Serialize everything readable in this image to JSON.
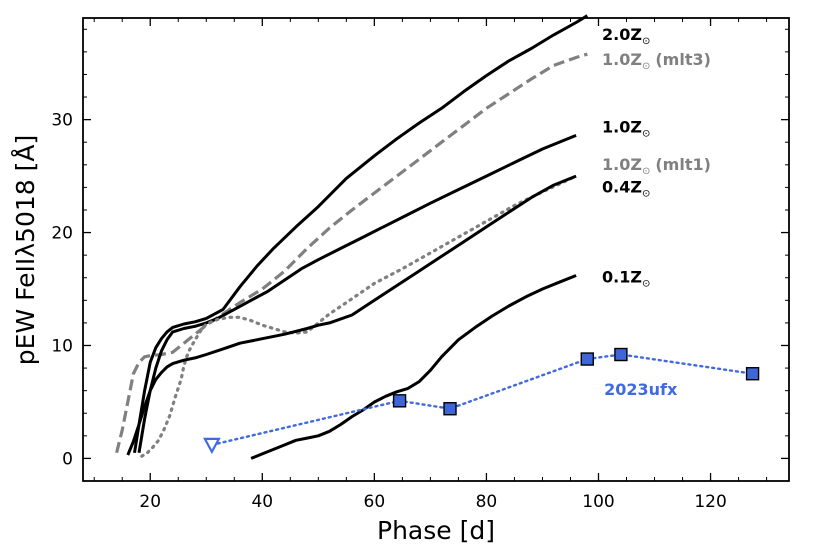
{
  "chart_data": {
    "type": "line",
    "title": "",
    "xlabel": "Phase [d]",
    "ylabel": "pEW FeIIλ5018 [Å]",
    "xlim": [
      8,
      134
    ],
    "ylim": [
      -2,
      39
    ],
    "xticks": [
      20,
      40,
      60,
      80,
      100,
      120
    ],
    "yticks": [
      0,
      10,
      20,
      30
    ],
    "xtick_labels": [
      "20",
      "40",
      "60",
      "80",
      "100",
      "120"
    ],
    "ytick_labels": [
      "0",
      "10",
      "20",
      "30"
    ],
    "grid": false,
    "series": [
      {
        "id": "z20",
        "name": "2.0Z",
        "suffix": "",
        "color": "#000000",
        "dash": "solid",
        "label_y": 37.5,
        "x": [
          17.2,
          18.0,
          19.0,
          20.0,
          21.0,
          22.0,
          23.0,
          24.0,
          26.0,
          28.0,
          30.0,
          33.0,
          36.0,
          39.0,
          42.0,
          46.0,
          50.0,
          55.0,
          60.0,
          64.0,
          68.0,
          72.0,
          76.0,
          80.0,
          84.0,
          88.0,
          92.0,
          96.0,
          98.0
        ],
        "y": [
          0.5,
          3.0,
          6.0,
          8.5,
          9.8,
          10.6,
          11.2,
          11.6,
          11.9,
          12.1,
          12.4,
          13.2,
          15.2,
          17.0,
          18.6,
          20.5,
          22.3,
          24.8,
          26.8,
          28.3,
          29.7,
          31.0,
          32.5,
          33.9,
          35.2,
          36.3,
          37.5,
          38.6,
          39.2
        ]
      },
      {
        "id": "z10mlt3",
        "name": "1.0Z",
        "suffix": "(mlt3)",
        "color": "#808080",
        "dash": "dashed",
        "label_y": 35.3,
        "x": [
          14.0,
          15.0,
          16.0,
          17.0,
          18.0,
          19.0,
          20.0,
          22.0,
          24.0,
          26.0,
          28.0,
          30.0,
          33.0,
          36.0,
          40.0,
          44.0,
          48.0,
          52.0,
          56.0,
          60.0,
          64.0,
          68.0,
          72.0,
          76.0,
          80.0,
          84.0,
          88.0,
          92.0,
          96.0,
          98.0
        ],
        "y": [
          0.5,
          2.5,
          5.0,
          7.5,
          8.5,
          9.0,
          9.1,
          9.2,
          9.4,
          10.2,
          11.0,
          11.8,
          12.8,
          13.8,
          15.0,
          16.6,
          18.6,
          20.4,
          22.0,
          23.5,
          25.0,
          26.5,
          28.0,
          29.5,
          31.0,
          32.3,
          33.6,
          34.8,
          35.5,
          35.8
        ]
      },
      {
        "id": "z10",
        "name": "1.0Z",
        "suffix": "",
        "color": "#000000",
        "dash": "solid",
        "label_y": 29.3,
        "x": [
          18.0,
          19.0,
          20.0,
          21.0,
          22.0,
          23.0,
          24.0,
          26.0,
          28.0,
          30.0,
          32.0,
          35.0,
          38.0,
          41.0,
          44.0,
          47.0,
          50.0,
          54.0,
          58.0,
          62.0,
          66.0,
          70.0,
          75.0,
          80.0,
          85.0,
          90.0,
          96.0
        ],
        "y": [
          0.5,
          3.5,
          6.0,
          8.0,
          9.5,
          10.5,
          11.2,
          11.5,
          11.7,
          12.0,
          12.4,
          13.2,
          14.0,
          14.8,
          15.8,
          16.8,
          17.6,
          18.6,
          19.6,
          20.6,
          21.6,
          22.6,
          23.8,
          25.0,
          26.2,
          27.4,
          28.6
        ]
      },
      {
        "id": "z10mlt1",
        "name": "1.0Z",
        "suffix": "(mlt1)",
        "color": "#808080",
        "dash": "dotted",
        "label_y": 26.0,
        "x": [
          18.5,
          19.5,
          20.5,
          21.5,
          22.5,
          23.5,
          24.5,
          25.5,
          26.0,
          26.5,
          27.0,
          28.0,
          29.0,
          30.0,
          32.0,
          34.0,
          36.0,
          38.0,
          40.0,
          42.0,
          44.0,
          46.0,
          48.0,
          50.0,
          52.0,
          55.0,
          60.0,
          65.0,
          70.0,
          75.0,
          80.0,
          85.0,
          90.0,
          96.0
        ],
        "y": [
          0.2,
          0.5,
          1.0,
          1.6,
          2.6,
          3.8,
          5.5,
          7.0,
          8.2,
          9.0,
          9.6,
          10.5,
          11.3,
          11.9,
          12.3,
          12.5,
          12.5,
          12.2,
          11.8,
          11.5,
          11.2,
          11.1,
          11.2,
          12.0,
          12.8,
          13.8,
          15.5,
          16.8,
          18.2,
          19.6,
          21.0,
          22.4,
          23.6,
          25.0
        ]
      },
      {
        "id": "z04",
        "name": "0.4Z",
        "suffix": "",
        "color": "#000000",
        "dash": "solid",
        "label_y": 24.0,
        "x": [
          16.0,
          17.0,
          18.0,
          19.0,
          20.0,
          21.0,
          22.0,
          23.0,
          24.0,
          26.0,
          28.0,
          30.0,
          33.0,
          36.0,
          40.0,
          44.0,
          48.0,
          50.0,
          52.0,
          56.0,
          60.0,
          64.0,
          68.0,
          72.0,
          76.0,
          80.0,
          84.0,
          88.0,
          92.0,
          96.0
        ],
        "y": [
          0.3,
          1.5,
          3.0,
          4.6,
          6.0,
          7.0,
          7.6,
          8.1,
          8.4,
          8.7,
          8.9,
          9.2,
          9.7,
          10.2,
          10.6,
          11.0,
          11.5,
          11.8,
          12.0,
          12.7,
          14.0,
          15.3,
          16.6,
          17.9,
          19.2,
          20.5,
          21.8,
          23.1,
          24.2,
          25.0
        ]
      },
      {
        "id": "z01",
        "name": "0.1Z",
        "suffix": "",
        "color": "#000000",
        "dash": "solid",
        "label_y": 16.0,
        "x": [
          38.0,
          40.0,
          42.0,
          44.0,
          46.0,
          48.0,
          50.0,
          52.0,
          54.0,
          56.0,
          58.0,
          60.0,
          62.0,
          64.0,
          66.0,
          68.0,
          70.0,
          72.0,
          75.0,
          78.0,
          81.0,
          84.0,
          87.0,
          90.0,
          93.0,
          96.0
        ],
        "y": [
          0.0,
          0.4,
          0.8,
          1.2,
          1.6,
          1.8,
          2.0,
          2.4,
          3.0,
          3.7,
          4.3,
          5.0,
          5.5,
          5.9,
          6.2,
          6.8,
          7.8,
          9.0,
          10.5,
          11.6,
          12.6,
          13.5,
          14.3,
          15.0,
          15.6,
          16.2
        ]
      }
    ],
    "observations": {
      "name": "2023ufx",
      "color": "#4169e1",
      "marker_fill": "#3f66d9",
      "label_x": 101,
      "label_y": 5.6,
      "upper_limit": {
        "x": 31.0,
        "y": 1.2
      },
      "points": [
        {
          "x": 64.5,
          "y": 5.1
        },
        {
          "x": 73.5,
          "y": 4.4
        },
        {
          "x": 98.0,
          "y": 8.8
        },
        {
          "x": 104.0,
          "y": 9.2
        },
        {
          "x": 127.5,
          "y": 7.5
        }
      ]
    }
  }
}
